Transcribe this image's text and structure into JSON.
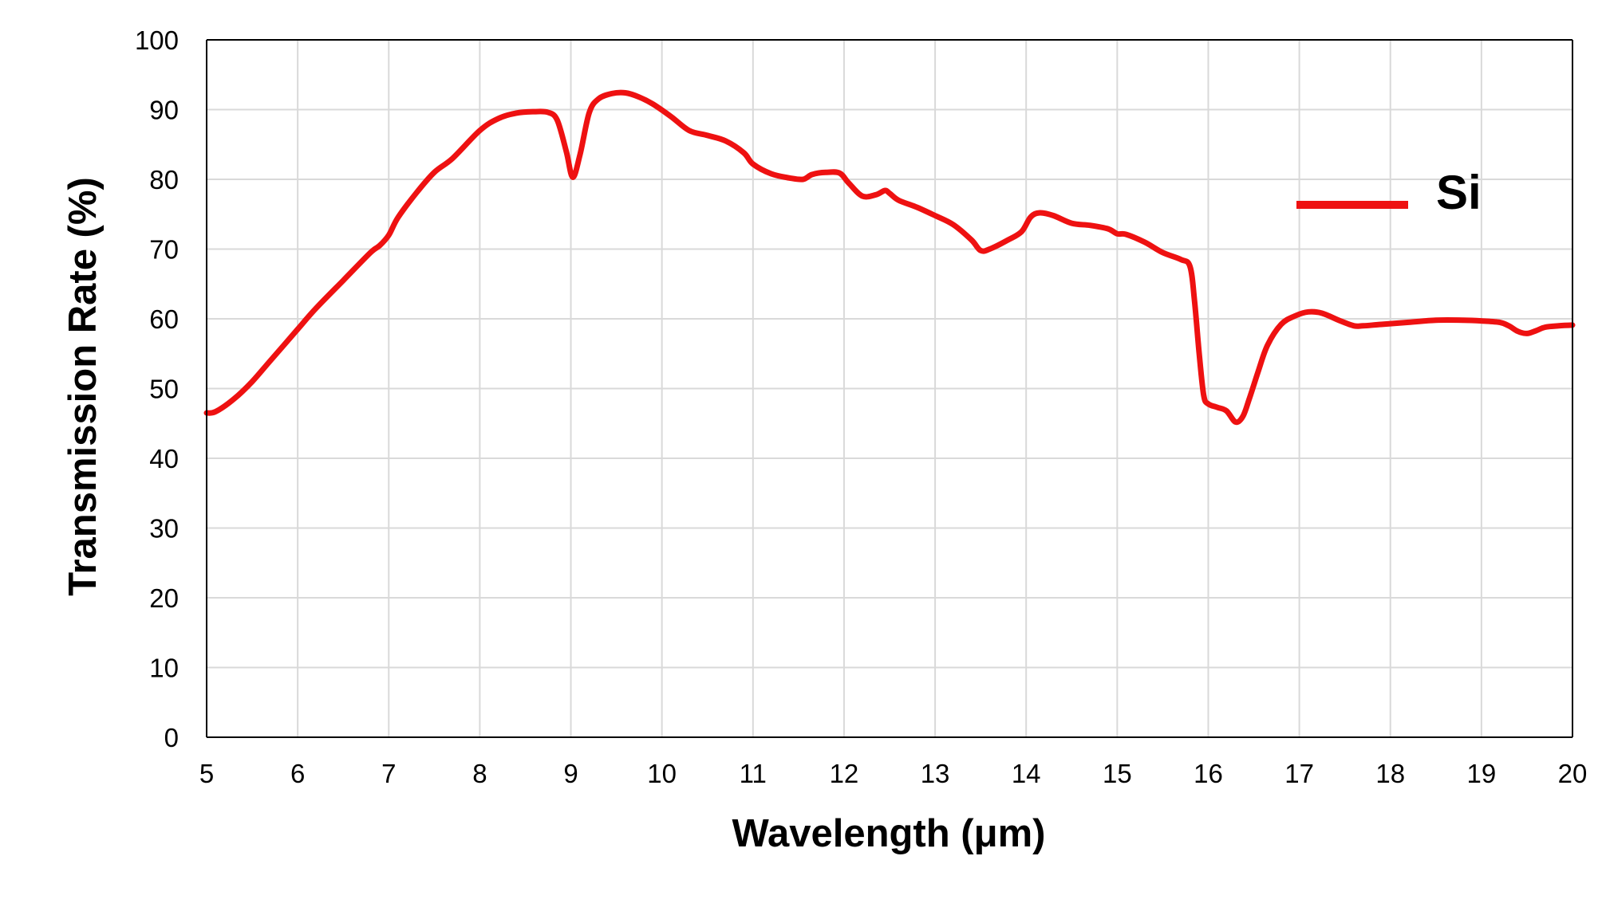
{
  "chart_data": {
    "type": "line",
    "title": "",
    "xlabel": "Wavelength (μm)",
    "ylabel": "Transmission Rate (%)",
    "xlim": [
      5,
      20
    ],
    "ylim": [
      0,
      100
    ],
    "x_ticks": [
      5,
      6,
      7,
      8,
      9,
      10,
      11,
      12,
      13,
      14,
      15,
      16,
      17,
      18,
      19,
      20
    ],
    "y_ticks": [
      0,
      10,
      20,
      30,
      40,
      50,
      60,
      70,
      80,
      90,
      100
    ],
    "grid": true,
    "legend": {
      "position": "top-right"
    },
    "colors": {
      "series": "#ee1111",
      "grid": "#d9d9d9",
      "axis": "#000000"
    },
    "series": [
      {
        "name": "Si",
        "x": [
          5.0,
          5.1,
          5.3,
          5.5,
          5.7,
          6.0,
          6.2,
          6.5,
          6.8,
          6.9,
          7.0,
          7.1,
          7.3,
          7.5,
          7.7,
          8.0,
          8.2,
          8.4,
          8.6,
          8.75,
          8.85,
          8.95,
          9.02,
          9.1,
          9.2,
          9.3,
          9.45,
          9.6,
          9.75,
          9.9,
          10.1,
          10.3,
          10.5,
          10.7,
          10.9,
          11.0,
          11.2,
          11.4,
          11.55,
          11.65,
          11.8,
          11.95,
          12.05,
          12.2,
          12.35,
          12.45,
          12.5,
          12.6,
          12.8,
          13.0,
          13.2,
          13.4,
          13.5,
          13.6,
          13.8,
          13.95,
          14.05,
          14.15,
          14.3,
          14.5,
          14.7,
          14.9,
          15.0,
          15.1,
          15.3,
          15.5,
          15.7,
          15.8,
          15.85,
          15.9,
          15.95,
          16.0,
          16.1,
          16.2,
          16.3,
          16.38,
          16.45,
          16.55,
          16.65,
          16.8,
          16.95,
          17.1,
          17.25,
          17.45,
          17.6,
          17.7,
          17.9,
          18.2,
          18.5,
          18.8,
          19.0,
          19.2,
          19.3,
          19.4,
          19.5,
          19.6,
          19.7,
          19.85,
          20.0
        ],
        "values": [
          46.5,
          46.7,
          48.5,
          51.0,
          54.0,
          58.5,
          61.5,
          65.5,
          69.5,
          70.5,
          72.0,
          74.5,
          78.0,
          81.0,
          83.0,
          87.0,
          88.7,
          89.5,
          89.7,
          89.6,
          88.5,
          84.0,
          80.3,
          83.5,
          89.5,
          91.5,
          92.3,
          92.4,
          91.8,
          90.8,
          89.0,
          87.0,
          86.3,
          85.5,
          83.8,
          82.2,
          80.8,
          80.2,
          80.0,
          80.7,
          81.0,
          80.9,
          79.5,
          77.6,
          77.8,
          78.4,
          78.0,
          77.0,
          76.0,
          74.8,
          73.5,
          71.3,
          69.8,
          70.0,
          71.3,
          72.5,
          74.6,
          75.2,
          74.8,
          73.7,
          73.4,
          72.9,
          72.2,
          72.1,
          71.0,
          69.5,
          68.5,
          67.5,
          62.5,
          55.0,
          49.0,
          47.8,
          47.3,
          46.8,
          45.2,
          46.0,
          48.5,
          52.5,
          56.2,
          59.2,
          60.4,
          61.0,
          60.8,
          59.7,
          59.0,
          59.0,
          59.2,
          59.5,
          59.8,
          59.8,
          59.7,
          59.5,
          59.0,
          58.2,
          57.9,
          58.3,
          58.8,
          59.0,
          59.1
        ]
      }
    ]
  }
}
